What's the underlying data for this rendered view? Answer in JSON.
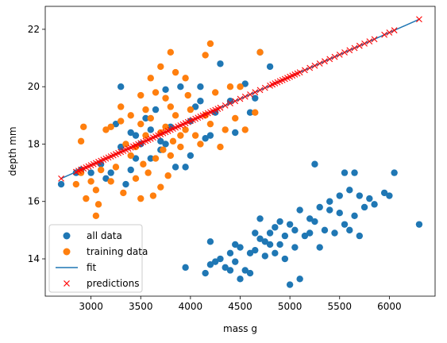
{
  "chart_data": {
    "type": "scatter",
    "title": "",
    "xlabel": "mass g",
    "ylabel": "depth mm",
    "xlim": [
      2540,
      6460
    ],
    "ylim": [
      12.7,
      22.8
    ],
    "x_ticks": [
      3000,
      3500,
      4000,
      4500,
      5000,
      5500,
      6000
    ],
    "y_ticks": [
      14,
      16,
      18,
      20,
      22
    ],
    "grid": false,
    "legend_position": "lower-left",
    "colors": {
      "all_data": "#1f77b4",
      "training_data": "#ff7f0e",
      "fit": "#1f77b4",
      "predictions": "#ff0000"
    },
    "series": [
      {
        "name": "all data",
        "kind": "scatter",
        "points": [
          [
            2700,
            16.6
          ],
          [
            2850,
            17.0
          ],
          [
            2900,
            17.1
          ],
          [
            3000,
            17.0
          ],
          [
            3100,
            17.3
          ],
          [
            3150,
            16.8
          ],
          [
            3200,
            17.0
          ],
          [
            3250,
            18.7
          ],
          [
            3300,
            20.0
          ],
          [
            3300,
            17.9
          ],
          [
            3350,
            16.6
          ],
          [
            3400,
            17.1
          ],
          [
            3400,
            18.4
          ],
          [
            3450,
            18.3
          ],
          [
            3450,
            17.5
          ],
          [
            3500,
            18.0
          ],
          [
            3550,
            18.9
          ],
          [
            3600,
            18.5
          ],
          [
            3600,
            17.5
          ],
          [
            3650,
            19.2
          ],
          [
            3700,
            17.8
          ],
          [
            3700,
            18.1
          ],
          [
            3750,
            19.9
          ],
          [
            3750,
            18.0
          ],
          [
            3800,
            18.6
          ],
          [
            3850,
            17.2
          ],
          [
            3900,
            20.0
          ],
          [
            3950,
            17.2
          ],
          [
            4000,
            17.6
          ],
          [
            4000,
            18.8
          ],
          [
            4050,
            19.3
          ],
          [
            4100,
            19.5
          ],
          [
            4100,
            20.0
          ],
          [
            4150,
            18.2
          ],
          [
            4200,
            18.3
          ],
          [
            4250,
            19.1
          ],
          [
            4300,
            20.8
          ],
          [
            4400,
            19.5
          ],
          [
            4450,
            18.4
          ],
          [
            4550,
            20.1
          ],
          [
            4600,
            19.1
          ],
          [
            4650,
            19.6
          ],
          [
            4800,
            20.7
          ],
          [
            4700,
            21.2
          ],
          [
            3950,
            13.7
          ],
          [
            4150,
            13.5
          ],
          [
            4200,
            13.8
          ],
          [
            4200,
            14.6
          ],
          [
            4250,
            13.9
          ],
          [
            4300,
            14.0
          ],
          [
            4350,
            13.7
          ],
          [
            4400,
            14.2
          ],
          [
            4400,
            13.6
          ],
          [
            4450,
            14.5
          ],
          [
            4450,
            13.9
          ],
          [
            4500,
            14.4
          ],
          [
            4500,
            13.3
          ],
          [
            4550,
            13.6
          ],
          [
            4600,
            14.2
          ],
          [
            4600,
            13.5
          ],
          [
            4650,
            14.9
          ],
          [
            4650,
            14.3
          ],
          [
            4700,
            14.7
          ],
          [
            4700,
            15.4
          ],
          [
            4750,
            14.6
          ],
          [
            4750,
            14.1
          ],
          [
            4800,
            14.5
          ],
          [
            4800,
            14.9
          ],
          [
            4850,
            14.2
          ],
          [
            4850,
            15.1
          ],
          [
            4900,
            15.3
          ],
          [
            4900,
            14.5
          ],
          [
            4950,
            14.0
          ],
          [
            4950,
            14.8
          ],
          [
            5000,
            13.1
          ],
          [
            5000,
            15.2
          ],
          [
            5050,
            14.4
          ],
          [
            5050,
            15.0
          ],
          [
            5100,
            13.3
          ],
          [
            5100,
            15.7
          ],
          [
            5150,
            14.8
          ],
          [
            5200,
            15.4
          ],
          [
            5200,
            14.9
          ],
          [
            5250,
            15.3
          ],
          [
            5250,
            17.3
          ],
          [
            5300,
            15.8
          ],
          [
            5300,
            14.4
          ],
          [
            5350,
            15.0
          ],
          [
            5400,
            15.7
          ],
          [
            5400,
            16.0
          ],
          [
            5450,
            14.9
          ],
          [
            5500,
            16.2
          ],
          [
            5500,
            15.6
          ],
          [
            5550,
            17.0
          ],
          [
            5550,
            15.2
          ],
          [
            5600,
            16.4
          ],
          [
            5600,
            15.0
          ],
          [
            5650,
            17.0
          ],
          [
            5650,
            15.5
          ],
          [
            5700,
            16.2
          ],
          [
            5700,
            14.8
          ],
          [
            5750,
            15.8
          ],
          [
            5800,
            16.1
          ],
          [
            5850,
            15.9
          ],
          [
            5950,
            16.3
          ],
          [
            6000,
            16.2
          ],
          [
            6050,
            17.0
          ],
          [
            6300,
            15.2
          ]
        ]
      },
      {
        "name": "training data",
        "kind": "scatter",
        "points": [
          [
            2850,
            16.6
          ],
          [
            2900,
            18.1
          ],
          [
            2900,
            17.0
          ],
          [
            2925,
            18.6
          ],
          [
            2950,
            16.1
          ],
          [
            3000,
            16.7
          ],
          [
            3050,
            16.4
          ],
          [
            3050,
            15.5
          ],
          [
            3075,
            15.9
          ],
          [
            3100,
            17.1
          ],
          [
            3150,
            18.5
          ],
          [
            3200,
            18.6
          ],
          [
            3200,
            16.7
          ],
          [
            3250,
            17.2
          ],
          [
            3300,
            18.8
          ],
          [
            3300,
            19.3
          ],
          [
            3325,
            16.3
          ],
          [
            3350,
            18.0
          ],
          [
            3400,
            17.6
          ],
          [
            3400,
            19.0
          ],
          [
            3450,
            17.9
          ],
          [
            3450,
            16.8
          ],
          [
            3500,
            19.7
          ],
          [
            3500,
            18.7
          ],
          [
            3500,
            16.1
          ],
          [
            3525,
            17.3
          ],
          [
            3550,
            19.2
          ],
          [
            3550,
            18.3
          ],
          [
            3575,
            17.0
          ],
          [
            3600,
            20.3
          ],
          [
            3600,
            18.9
          ],
          [
            3625,
            16.2
          ],
          [
            3650,
            19.8
          ],
          [
            3650,
            17.5
          ],
          [
            3700,
            20.7
          ],
          [
            3700,
            18.4
          ],
          [
            3700,
            16.5
          ],
          [
            3725,
            17.8
          ],
          [
            3750,
            19.6
          ],
          [
            3750,
            18.6
          ],
          [
            3775,
            16.9
          ],
          [
            3800,
            21.2
          ],
          [
            3800,
            19.3
          ],
          [
            3800,
            17.6
          ],
          [
            3825,
            18.1
          ],
          [
            3850,
            20.5
          ],
          [
            3850,
            19.0
          ],
          [
            3900,
            18.3
          ],
          [
            3900,
            17.9
          ],
          [
            3950,
            20.3
          ],
          [
            3950,
            18.5
          ],
          [
            3975,
            19.7
          ],
          [
            4000,
            19.2
          ],
          [
            4050,
            18.3
          ],
          [
            4100,
            18.0
          ],
          [
            4150,
            21.1
          ],
          [
            4150,
            19.0
          ],
          [
            4200,
            21.5
          ],
          [
            4200,
            18.7
          ],
          [
            4250,
            19.8
          ],
          [
            4300,
            17.9
          ],
          [
            4350,
            18.5
          ],
          [
            4400,
            20.0
          ],
          [
            4450,
            18.9
          ],
          [
            4500,
            20.0
          ],
          [
            4550,
            18.5
          ],
          [
            4650,
            19.1
          ],
          [
            4700,
            21.2
          ]
        ]
      },
      {
        "name": "fit",
        "kind": "line",
        "points": [
          [
            2700,
            16.8
          ],
          [
            6300,
            22.35
          ]
        ]
      },
      {
        "name": "predictions",
        "kind": "marker-x",
        "x": [
          2700,
          2850,
          2875,
          2900,
          2925,
          2950,
          2975,
          3000,
          3025,
          3050,
          3075,
          3100,
          3125,
          3150,
          3175,
          3200,
          3225,
          3250,
          3275,
          3300,
          3325,
          3350,
          3375,
          3400,
          3425,
          3450,
          3475,
          3500,
          3525,
          3550,
          3575,
          3600,
          3625,
          3650,
          3675,
          3700,
          3725,
          3750,
          3775,
          3800,
          3825,
          3850,
          3875,
          3900,
          3925,
          3950,
          3975,
          4000,
          4025,
          4050,
          4075,
          4100,
          4125,
          4150,
          4175,
          4200,
          4225,
          4250,
          4275,
          4300,
          4350,
          4400,
          4450,
          4500,
          4550,
          4600,
          4650,
          4700,
          4750,
          4800,
          4825,
          4850,
          4875,
          4900,
          4925,
          4950,
          4975,
          5000,
          5025,
          5050,
          5075,
          5100,
          5150,
          5200,
          5250,
          5300,
          5350,
          5400,
          5450,
          5500,
          5550,
          5600,
          5650,
          5700,
          5750,
          5800,
          5850,
          5950,
          6000,
          6050,
          6300
        ]
      }
    ]
  }
}
